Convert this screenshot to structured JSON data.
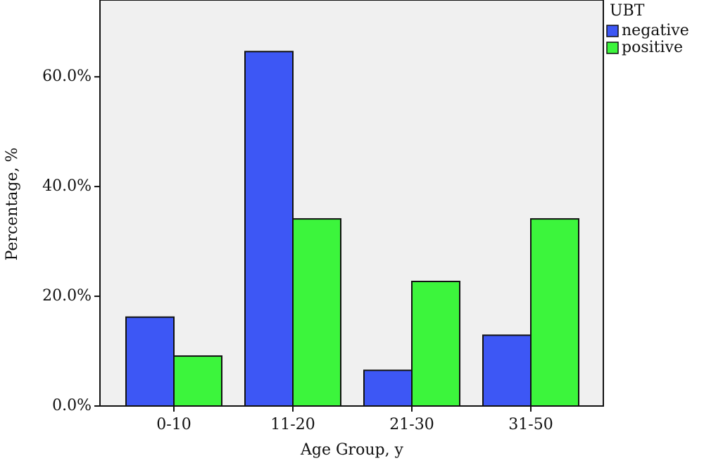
{
  "chart_data": {
    "type": "bar",
    "x_label": "Age Group, y",
    "y_label": "Percentage, %",
    "legend_title": "UBT",
    "legend_position": "upper right outside",
    "categories": [
      "0-10",
      "11-20",
      "21-30",
      "31-50"
    ],
    "series": [
      {
        "name": "negative",
        "color": "#3d57f5",
        "values": [
          16.2,
          64.6,
          6.5,
          12.9
        ]
      },
      {
        "name": "positive",
        "color": "#3cf53c",
        "values": [
          9.1,
          34.1,
          22.7,
          34.1
        ]
      }
    ],
    "ylim": [
      0,
      74
    ],
    "yticks": [
      {
        "value": 0,
        "label": "0.0%"
      },
      {
        "value": 20,
        "label": "20.0%"
      },
      {
        "value": 40,
        "label": "40.0%"
      },
      {
        "value": 60,
        "label": "60.0%"
      }
    ],
    "grid": false
  }
}
